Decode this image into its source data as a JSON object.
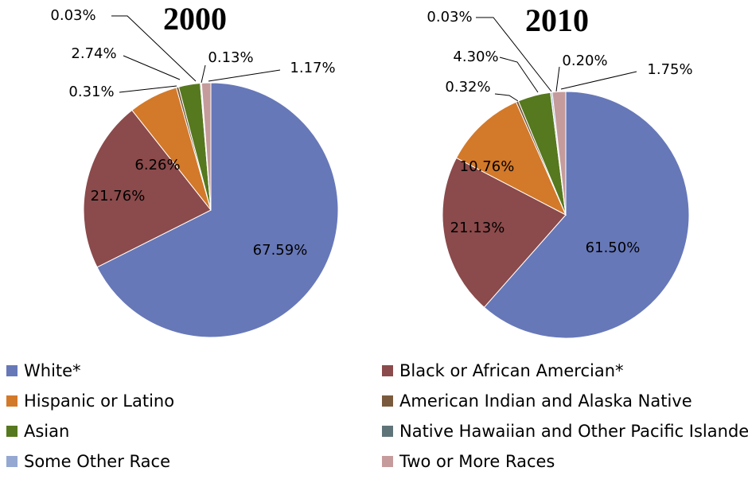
{
  "legend": {
    "entries": [
      "White*",
      "Black or African Amercian*",
      "Hispanic or Latino",
      "American Indian and Alaska Native",
      "Asian",
      "Native Hawaiian and Other Pacific Islander",
      "Some Other Race",
      "Two or More Races"
    ],
    "colors": [
      "#6778b8",
      "#8b4a4b",
      "#d3792a",
      "#7a5a3c",
      "#56781f",
      "#5f7478",
      "#95a8d1",
      "#c59b9b"
    ]
  },
  "chart_data": [
    {
      "type": "pie",
      "title": "2000",
      "values": [
        67.59,
        21.76,
        6.26,
        0.31,
        2.74,
        0.03,
        0.13,
        1.17
      ],
      "value_labels": [
        "67.59%",
        "21.76%",
        "6.26%",
        "0.31%",
        "2.74%",
        "0.03%",
        "0.13%",
        "1.17%"
      ]
    },
    {
      "type": "pie",
      "title": "2010",
      "values": [
        61.5,
        21.13,
        10.76,
        0.32,
        4.3,
        0.03,
        0.2,
        1.75
      ],
      "value_labels": [
        "61.50%",
        "21.13%",
        "10.76%",
        "0.32%",
        "4.30%",
        "0.03%",
        "0.20%",
        "1.75%"
      ]
    }
  ]
}
